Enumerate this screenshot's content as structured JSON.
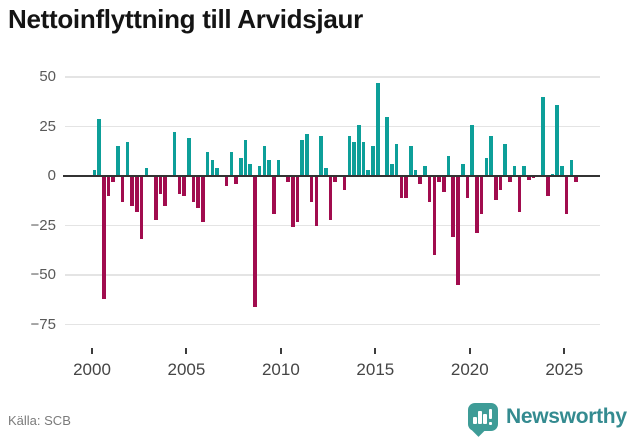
{
  "title": "Nettoinflyttning till Arvidsjaur",
  "source": "Källa: SCB",
  "branding": {
    "name": "Newsworthy",
    "icon": "newsworthy-speech-bubble-chart-icon"
  },
  "chart_data": {
    "type": "bar",
    "title": "Nettoinflyttning till Arvidsjaur",
    "frequency": "quarterly",
    "start_year": 2000,
    "x_tick_labels": [
      "2000",
      "2005",
      "2010",
      "2015",
      "2020",
      "2025"
    ],
    "y_tick_labels": [
      "50",
      "25",
      "0",
      "−25",
      "−50",
      "−75"
    ],
    "y_tick_values": [
      50,
      25,
      0,
      -25,
      -50,
      -75
    ],
    "ylim": [
      -80,
      55
    ],
    "grid": "horizontal-only",
    "legend": "none",
    "colors": {
      "positive": "#0d9f99",
      "negative": "#a10c4e"
    },
    "values": [
      3,
      29,
      -62,
      -10,
      -3,
      15,
      -13,
      17,
      -15,
      -18,
      -32,
      4,
      0,
      -22,
      -9,
      -15,
      0,
      22,
      -9,
      -10,
      19,
      -13,
      -16,
      -23,
      12,
      8,
      4,
      0,
      -5,
      12,
      -4,
      9,
      18,
      6,
      -66,
      5,
      15,
      8,
      -19,
      8,
      0,
      -3,
      -26,
      -23,
      18,
      21,
      -13,
      -25,
      20,
      4,
      -22,
      -3,
      0,
      -7,
      20,
      17,
      26,
      17,
      3,
      15,
      47,
      0,
      30,
      6,
      16,
      -11,
      -11,
      15,
      3,
      -4,
      5,
      -13,
      -40,
      -3,
      -8,
      10,
      -31,
      -55,
      6,
      -11,
      26,
      -29,
      -19,
      9,
      20,
      -12,
      -7,
      16,
      -3,
      5,
      -18,
      5,
      -2,
      -1,
      0,
      40,
      -10,
      1,
      36,
      5,
      -19,
      8,
      -3
    ]
  }
}
